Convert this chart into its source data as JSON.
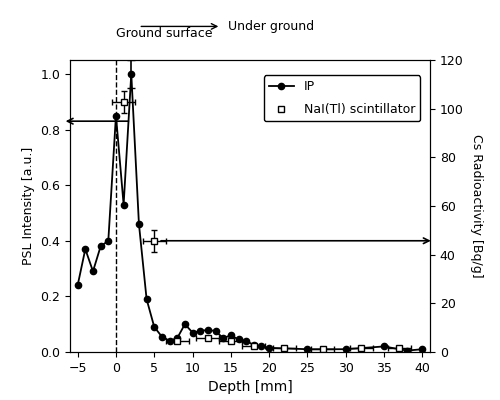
{
  "title": "",
  "xlabel": "Depth [mm]",
  "ylabel_left": "PSL Intensity [a.u.]",
  "ylabel_right": "Cs Radioactivity [Bq/g]",
  "xlim": [
    -6,
    41
  ],
  "ylim_left": [
    0,
    1.05
  ],
  "ylim_right": [
    0,
    120
  ],
  "xticks": [
    -5,
    0,
    5,
    10,
    15,
    20,
    25,
    30,
    35,
    40
  ],
  "yticks_left": [
    0.0,
    0.2,
    0.4,
    0.6,
    0.8,
    1.0
  ],
  "yticks_right": [
    0,
    20,
    40,
    60,
    80,
    100,
    120
  ],
  "ip_x": [
    -5,
    -4,
    -3,
    -2,
    -1,
    0,
    1,
    2,
    3,
    4,
    5,
    6,
    7,
    8,
    9,
    10,
    11,
    12,
    13,
    14,
    15,
    16,
    17,
    18,
    19,
    20,
    25,
    30,
    35,
    38,
    40
  ],
  "ip_y": [
    0.24,
    0.37,
    0.29,
    0.38,
    0.4,
    0.85,
    0.53,
    1.0,
    0.46,
    0.19,
    0.09,
    0.055,
    0.04,
    0.05,
    0.1,
    0.07,
    0.075,
    0.08,
    0.075,
    0.05,
    0.06,
    0.045,
    0.04,
    0.025,
    0.02,
    0.015,
    0.01,
    0.01,
    0.02,
    0.005,
    0.01
  ],
  "nai_x": [
    1,
    5,
    8,
    12,
    15,
    18,
    22,
    27,
    32,
    37
  ],
  "nai_y": [
    0.9,
    0.4,
    0.04,
    0.05,
    0.04,
    0.02,
    0.015,
    0.01,
    0.015,
    0.015
  ],
  "nai_xerr": [
    1.5,
    1.5,
    1.5,
    1.5,
    1.5,
    1.5,
    1.5,
    1.5,
    1.5,
    1.5
  ],
  "nai_yerr": [
    0.04,
    0.04,
    0.005,
    0.005,
    0.005,
    0.005,
    0.005,
    0.005,
    0.005,
    0.005
  ],
  "annotation_ground_surface": "Ground surface",
  "annotation_underground": "Under ground",
  "annotation_ip": "IP",
  "annotation_nai": "NaI(Tl) scintillator",
  "line_color": "black",
  "marker_ip": "o",
  "marker_nai": "s",
  "figsize": [
    5.0,
    4.0
  ],
  "dpi": 100
}
